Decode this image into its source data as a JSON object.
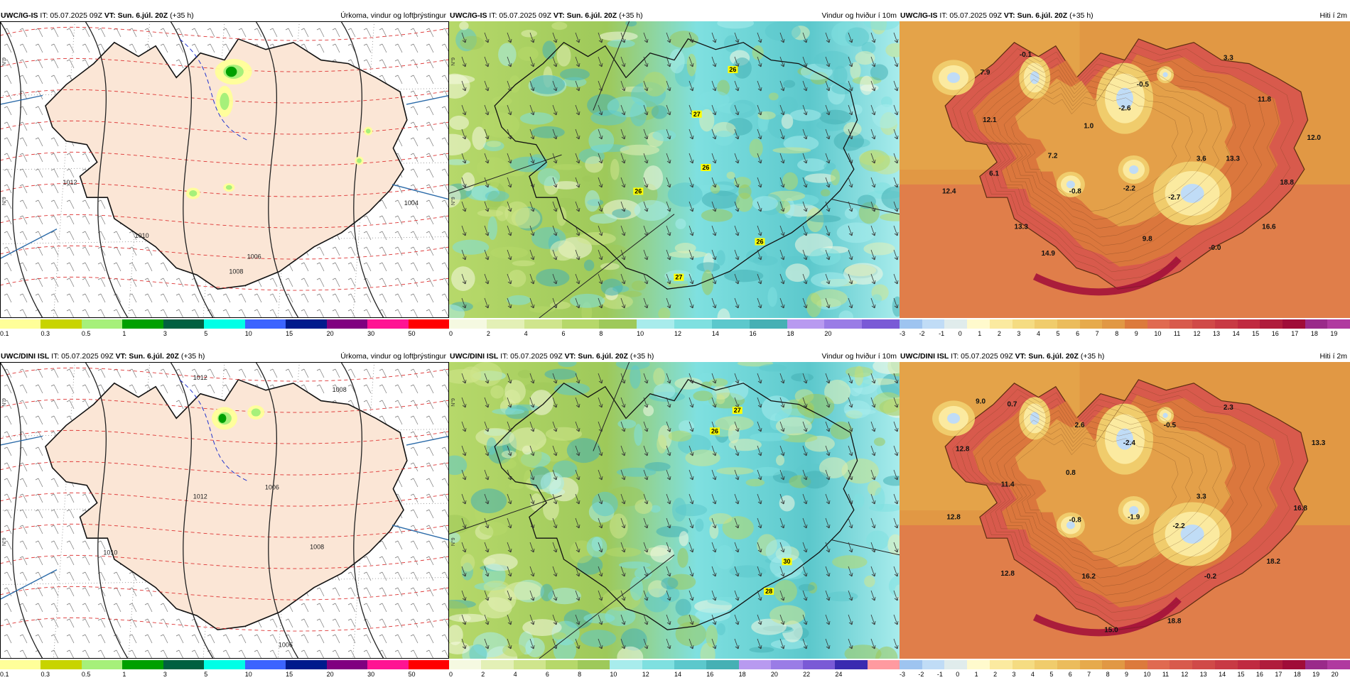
{
  "header_common": {
    "it_label": "IT: 05.07.2025 09Z",
    "vt_label": "VT: Sun. 6.júl. 20Z",
    "lead": "(+35 h)"
  },
  "rows": [
    {
      "model": "UWC/IG-IS",
      "panels": [
        {
          "kind": "precip",
          "title": "Úrkoma, vindur og loftþrýstingur",
          "colorbar": {
            "colors": [
              "#ffff99",
              "#c8d400",
              "#a6f07a",
              "#00a000",
              "#006040",
              "#00ffe6",
              "#3c64ff",
              "#001a8c",
              "#800080",
              "#ff1493",
              "#ff0000"
            ],
            "ticks": [
              "0.1",
              "0.3",
              "0.5",
              "1",
              "3",
              "5",
              "10",
              "15",
              "20",
              "30",
              "50"
            ]
          },
          "isobar_labels": [
            "1012",
            "1010",
            "1008",
            "1006",
            "1004"
          ]
        },
        {
          "kind": "wind",
          "title": "Vindur og hviður í 10m",
          "colorbar": {
            "colors": [
              "#f5f9e1",
              "#e3f0b6",
              "#cfe58d",
              "#b6d86a",
              "#9ec95a",
              "#a8ecec",
              "#7fe0e0",
              "#5cc8cc",
              "#46b0b4",
              "#b89af0",
              "#9a7ce6",
              "#7a5ad6"
            ],
            "ticks": [
              "0",
              "2",
              "4",
              "6",
              "8",
              "10",
              "12",
              "14",
              "16",
              "18",
              "20"
            ]
          },
          "gust_labels": [
            "26",
            "27",
            "26",
            "26",
            "26",
            "27"
          ]
        },
        {
          "kind": "temp",
          "title": "Hiti í 2m",
          "colorbar": {
            "colors": [
              "#9ec4f0",
              "#c0dcf6",
              "#e0ecec",
              "#fffacd",
              "#fbeaa0",
              "#f5dc82",
              "#f0cc6c",
              "#ebbc5c",
              "#e6aa4c",
              "#e19844",
              "#dc7a3c",
              "#e06a50",
              "#d85a4c",
              "#d04a48",
              "#c83a44",
              "#c02a40",
              "#b01c3c",
              "#a00c38",
              "#9a2a8a",
              "#b03aa0"
            ],
            "ticks": [
              "-3",
              "-2",
              "-1",
              "0",
              "1",
              "2",
              "3",
              "4",
              "5",
              "6",
              "7",
              "8",
              "9",
              "10",
              "11",
              "12",
              "13",
              "14",
              "15",
              "16",
              "17",
              "18",
              "19"
            ]
          },
          "temp_labels": [
            "-0.1",
            "7.9",
            "-0.5",
            "3.3",
            "-2.6",
            "11.8",
            "12.1",
            "1.0",
            "12.0",
            "7.2",
            "6.1",
            "3.6",
            "13.3",
            "12.4",
            "-0.8",
            "-2.2",
            "-2.7",
            "18.8",
            "13.3",
            "9.8",
            "16.6",
            "-0.0",
            "14.9"
          ]
        }
      ]
    },
    {
      "model": "UWC/DINI ISL",
      "panels": [
        {
          "kind": "precip",
          "title": "Úrkoma, vindur og loftþrýstingur",
          "colorbar": {
            "colors": [
              "#ffff99",
              "#c8d400",
              "#a6f07a",
              "#00a000",
              "#006040",
              "#00ffe6",
              "#3c64ff",
              "#001a8c",
              "#800080",
              "#ff1493",
              "#ff0000"
            ],
            "ticks": [
              "0.1",
              "0.3",
              "0.5",
              "1",
              "3",
              "5",
              "10",
              "15",
              "20",
              "30",
              "50"
            ]
          },
          "isobar_labels": [
            "1012",
            "1008",
            "1012",
            "1010",
            "1006",
            "1008",
            "1006"
          ]
        },
        {
          "kind": "wind",
          "title": "Vindur og hviður í 10m",
          "colorbar": {
            "colors": [
              "#f5f9e1",
              "#e3f0b6",
              "#cfe58d",
              "#b6d86a",
              "#9ec95a",
              "#a8ecec",
              "#7fe0e0",
              "#5cc8cc",
              "#46b0b4",
              "#b89af0",
              "#9a7ce6",
              "#7a5ad6",
              "#3a2ab0",
              "#ff9aa0"
            ],
            "ticks": [
              "0",
              "2",
              "4",
              "6",
              "8",
              "10",
              "12",
              "14",
              "16",
              "18",
              "20",
              "22",
              "24"
            ]
          },
          "gust_labels": [
            "27",
            "26",
            "30",
            "28"
          ]
        },
        {
          "kind": "temp",
          "title": "Hiti í 2m",
          "colorbar": {
            "colors": [
              "#9ec4f0",
              "#c0dcf6",
              "#e0ecec",
              "#fffacd",
              "#fbeaa0",
              "#f5dc82",
              "#f0cc6c",
              "#ebbc5c",
              "#e6aa4c",
              "#e19844",
              "#dc7a3c",
              "#e06a50",
              "#d85a4c",
              "#d04a48",
              "#c83a44",
              "#c02a40",
              "#b01c3c",
              "#a00c38",
              "#9a2a8a",
              "#b03aa0"
            ],
            "ticks": [
              "-3",
              "-2",
              "-1",
              "0",
              "1",
              "2",
              "3",
              "4",
              "5",
              "6",
              "7",
              "8",
              "9",
              "10",
              "11",
              "12",
              "13",
              "14",
              "15",
              "16",
              "17",
              "18",
              "19",
              "20"
            ]
          },
          "temp_labels": [
            "9.0",
            "0.7",
            "2.3",
            "2.6",
            "-0.5",
            "-2.4",
            "13.3",
            "12.8",
            "0.8",
            "11.4",
            "3.3",
            "12.8",
            "-0.8",
            "-1.9",
            "-2.2",
            "16.8",
            "12.8",
            "16.2",
            "-0.2",
            "18.2",
            "15.0",
            "18.8"
          ]
        }
      ]
    }
  ],
  "lat_label": "N°9"
}
